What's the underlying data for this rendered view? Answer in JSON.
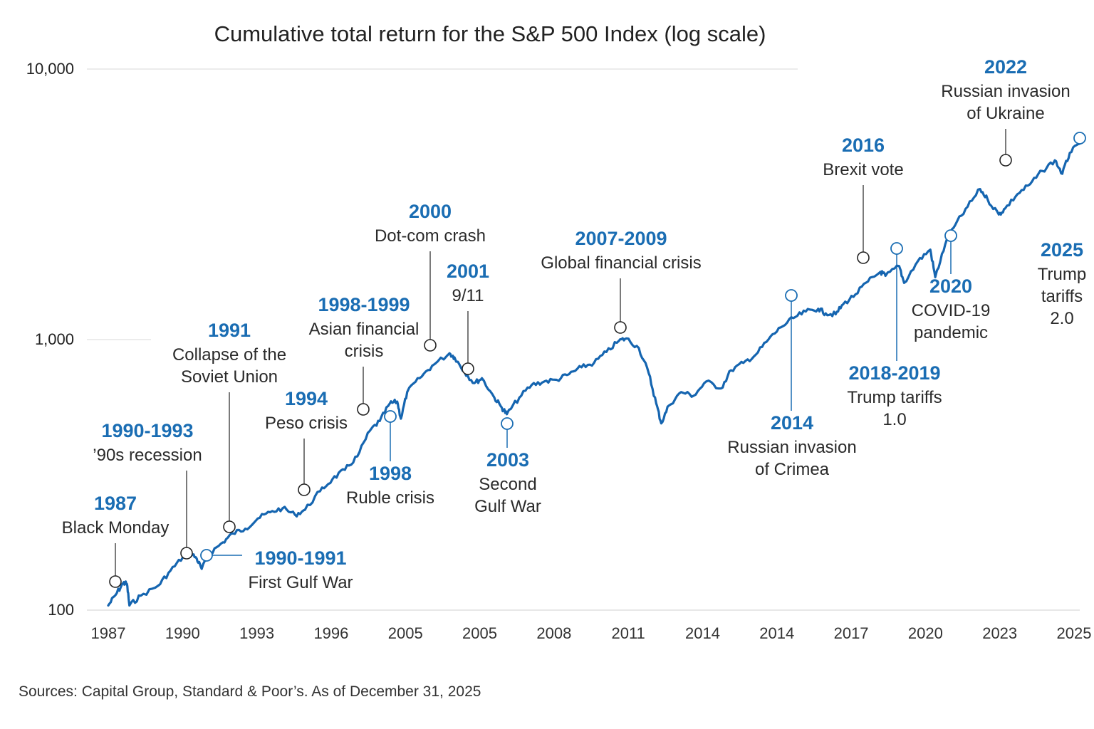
{
  "chart_data": {
    "type": "line",
    "title": "Cumulative total return for the S&P 500 Index (log scale)",
    "y_scale": "log",
    "ylim": [
      100,
      10000
    ],
    "y_ticks": [
      {
        "value": 100,
        "label": "100"
      },
      {
        "value": 1000,
        "label": "1,000"
      },
      {
        "value": 10000,
        "label": "10,000"
      }
    ],
    "x_tick_labels": [
      "1987",
      "1990",
      "1993",
      "1996",
      "2005",
      "2005",
      "2008",
      "2011",
      "2014",
      "2014",
      "2017",
      "2020",
      "2023",
      "2025"
    ],
    "grid": "horizontal",
    "colors": {
      "series": "#1565b0",
      "event_year": "#1a6db3"
    },
    "series": [
      {
        "values": [
          [
            1987.0,
            104
          ],
          [
            1987.3,
            114
          ],
          [
            1987.6,
            126
          ],
          [
            1987.75,
            125
          ],
          [
            1987.85,
            104
          ],
          [
            1988.3,
            113
          ],
          [
            1989.0,
            123
          ],
          [
            1989.5,
            140
          ],
          [
            1990.0,
            157
          ],
          [
            1990.3,
            163
          ],
          [
            1990.55,
            155
          ],
          [
            1990.75,
            142
          ],
          [
            1991.1,
            163
          ],
          [
            1991.6,
            178
          ],
          [
            1992.0,
            192
          ],
          [
            1992.5,
            200
          ],
          [
            1993.0,
            218
          ],
          [
            1993.5,
            230
          ],
          [
            1994.0,
            238
          ],
          [
            1994.5,
            225
          ],
          [
            1994.9,
            235
          ],
          [
            1995.5,
            275
          ],
          [
            1996.0,
            305
          ],
          [
            1996.5,
            330
          ],
          [
            1997.0,
            370
          ],
          [
            1997.5,
            460
          ],
          [
            1997.9,
            500
          ],
          [
            1998.3,
            580
          ],
          [
            1998.6,
            590
          ],
          [
            1998.75,
            510
          ],
          [
            1999.0,
            640
          ],
          [
            1999.5,
            720
          ],
          [
            2000.0,
            800
          ],
          [
            2000.7,
            890
          ],
          [
            2000.9,
            860
          ],
          [
            2001.3,
            760
          ],
          [
            2001.7,
            690
          ],
          [
            2002.0,
            720
          ],
          [
            2002.5,
            610
          ],
          [
            2002.8,
            560
          ],
          [
            2003.0,
            530
          ],
          [
            2003.5,
            610
          ],
          [
            2004.0,
            680
          ],
          [
            2004.5,
            700
          ],
          [
            2005.0,
            710
          ],
          [
            2005.5,
            745
          ],
          [
            2006.0,
            790
          ],
          [
            2006.5,
            820
          ],
          [
            2007.0,
            900
          ],
          [
            2007.5,
            990
          ],
          [
            2007.8,
            1010
          ],
          [
            2008.3,
            930
          ],
          [
            2008.7,
            750
          ],
          [
            2009.0,
            580
          ],
          [
            2009.2,
            490
          ],
          [
            2009.5,
            570
          ],
          [
            2010.0,
            640
          ],
          [
            2010.5,
            620
          ],
          [
            2011.0,
            700
          ],
          [
            2011.6,
            660
          ],
          [
            2012.0,
            770
          ],
          [
            2012.5,
            820
          ],
          [
            2013.0,
            880
          ],
          [
            2013.5,
            1000
          ],
          [
            2014.0,
            1110
          ],
          [
            2014.5,
            1200
          ],
          [
            2015.0,
            1270
          ],
          [
            2015.5,
            1300
          ],
          [
            2015.8,
            1250
          ],
          [
            2016.2,
            1240
          ],
          [
            2016.5,
            1350
          ],
          [
            2017.0,
            1470
          ],
          [
            2017.5,
            1640
          ],
          [
            2018.0,
            1780
          ],
          [
            2018.2,
            1720
          ],
          [
            2018.75,
            1870
          ],
          [
            2018.95,
            1620
          ],
          [
            2019.5,
            1950
          ],
          [
            2020.0,
            2150
          ],
          [
            2020.2,
            1700
          ],
          [
            2020.6,
            2250
          ],
          [
            2021.0,
            2650
          ],
          [
            2021.5,
            3100
          ],
          [
            2022.0,
            3600
          ],
          [
            2022.3,
            3300
          ],
          [
            2022.75,
            2900
          ],
          [
            2023.0,
            3050
          ],
          [
            2023.5,
            3450
          ],
          [
            2024.0,
            3750
          ],
          [
            2024.5,
            4200
          ],
          [
            2025.0,
            4600
          ],
          [
            2025.3,
            4100
          ],
          [
            2025.6,
            4900
          ],
          [
            2026.0,
            5300
          ]
        ]
      }
    ],
    "events": [
      {
        "year": "1987",
        "label": [
          "Black Monday"
        ],
        "x": 1987.8,
        "y": 125
      },
      {
        "year": "1990-1993",
        "label": [
          "’90s recession"
        ],
        "x": 1990.5,
        "y": 156
      },
      {
        "year": "1990-1991",
        "label": [
          "First Gulf War"
        ],
        "x": 1990.8,
        "y": 156
      },
      {
        "year": "1991",
        "label": [
          "Collapse of the",
          "Soviet Union"
        ],
        "x": 1991.7,
        "y": 196
      },
      {
        "year": "1994",
        "label": [
          "Peso crisis"
        ],
        "x": 1994.3,
        "y": 230
      },
      {
        "year": "1998-1999",
        "label": [
          "Asian financial",
          "crisis"
        ],
        "x": 1997.8,
        "y": 497
      },
      {
        "year": "1998",
        "label": [
          "Ruble crisis"
        ],
        "x": 1998.6,
        "y": 485
      },
      {
        "year": "2000",
        "label": [
          "Dot-com crash"
        ],
        "x": 2000.3,
        "y": 907
      },
      {
        "year": "2001",
        "label": [
          "9/11"
        ],
        "x": 2001.8,
        "y": 723
      },
      {
        "year": "2003",
        "label": [
          "Second",
          "Gulf War"
        ],
        "x": 2003.4,
        "y": 460
      },
      {
        "year": "2007-2009",
        "label": [
          "Global financial crisis"
        ],
        "x": 2007.9,
        "y": 1085
      },
      {
        "year": "2014",
        "label": [
          "Russian invasion",
          "of Crimea"
        ],
        "x": 2014.0,
        "y": 1450
      },
      {
        "year": "2016",
        "label": [
          "Brexit vote"
        ],
        "x": 2016.8,
        "y": 1980
      },
      {
        "year": "2018-2019",
        "label": [
          "Trump tariffs",
          "1.0"
        ],
        "x": 2018.2,
        "y": 2200
      },
      {
        "year": "2020",
        "label": [
          "COVID-19",
          "pandemic"
        ],
        "x": 2020.2,
        "y": 2460
      },
      {
        "year": "2022",
        "label": [
          "Russian invasion",
          "of Ukraine"
        ],
        "x": 2022.3,
        "y": 4230
      },
      {
        "year": "2025",
        "label": [
          "Trump",
          "tariffs",
          "2.0"
        ],
        "x": 2025.9,
        "y": 5200
      }
    ]
  },
  "source": "Sources: Capital Group, Standard & Poor’s. As of December 31, 2025"
}
